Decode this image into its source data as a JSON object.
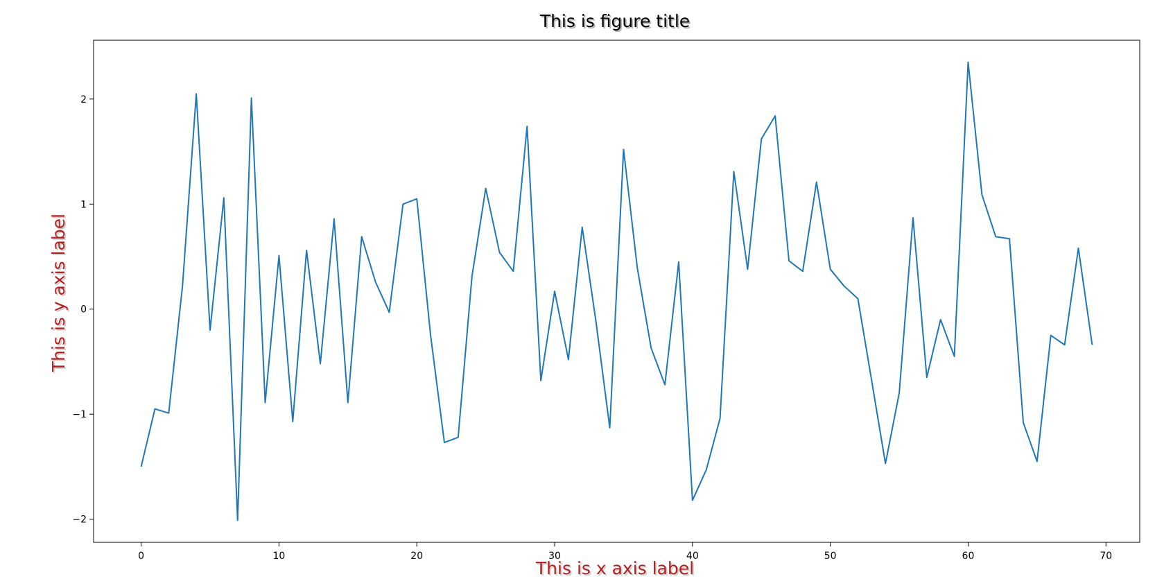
{
  "chart_data": {
    "type": "line",
    "title": "This is figure title",
    "xlabel": "This is x axis label",
    "ylabel": "This is y axis label",
    "xlim": [
      -3.45,
      72.45
    ],
    "ylim": [
      -2.22,
      2.56
    ],
    "xticks": [
      0,
      10,
      20,
      30,
      40,
      50,
      60,
      70
    ],
    "xtick_labels": [
      "0",
      "10",
      "20",
      "30",
      "40",
      "50",
      "60",
      "70"
    ],
    "yticks": [
      -2,
      -1,
      0,
      1,
      2
    ],
    "ytick_labels": [
      "−2",
      "−1",
      "0",
      "1",
      "2"
    ],
    "grid": false,
    "colors": {
      "line": "#1f77b4",
      "axis_label": "#b22222",
      "title": "#000000"
    },
    "series": [
      {
        "x": [
          0,
          1,
          2,
          3,
          4,
          5,
          6,
          7,
          8,
          9,
          10,
          11,
          12,
          13,
          14,
          15,
          16,
          17,
          18,
          19,
          20,
          21,
          22,
          23,
          24,
          25,
          26,
          27,
          28,
          29,
          30,
          31,
          32,
          33,
          34,
          35,
          36,
          37,
          38,
          39,
          40,
          41,
          42,
          43,
          44,
          45,
          46,
          47,
          48,
          49,
          50,
          51,
          52,
          53,
          54,
          55,
          56,
          57,
          58,
          59,
          60,
          61,
          62,
          63,
          64,
          65,
          66,
          67,
          68,
          69
        ],
        "values": [
          -1.5,
          -0.95,
          -0.99,
          0.22,
          2.05,
          -0.2,
          1.06,
          -2.01,
          2.01,
          -0.89,
          0.51,
          -1.07,
          0.56,
          -0.52,
          0.86,
          -0.89,
          0.69,
          0.26,
          -0.03,
          1.0,
          1.05,
          -0.25,
          -1.27,
          -1.22,
          0.31,
          1.15,
          0.54,
          0.36,
          1.74,
          -0.68,
          0.17,
          -0.48,
          0.78,
          -0.12,
          -1.13,
          1.52,
          0.39,
          -0.37,
          -0.72,
          0.45,
          -1.82,
          -1.53,
          -1.04,
          1.31,
          0.38,
          1.62,
          1.84,
          0.46,
          0.36,
          1.21,
          0.38,
          0.22,
          0.1,
          -0.68,
          -1.47,
          -0.8,
          0.87,
          -0.65,
          -0.1,
          -0.45,
          2.35,
          1.09,
          0.69,
          0.67,
          -1.08,
          -1.45,
          -0.25,
          -0.34,
          0.58,
          -0.34
        ]
      }
    ]
  }
}
